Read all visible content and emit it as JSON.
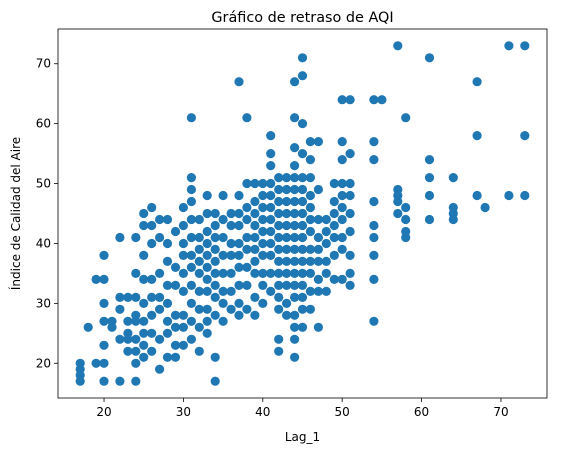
{
  "chart_data": {
    "type": "scatter",
    "title": "Gráfico de retraso de AQI",
    "xlabel": "Lag_1",
    "ylabel": "Índice de Calidad del Aire",
    "xlim": [
      14.2,
      75.8
    ],
    "ylim": [
      14.2,
      75.8
    ],
    "xticks": [
      20,
      30,
      40,
      50,
      60,
      70
    ],
    "yticks": [
      20,
      30,
      40,
      50,
      60,
      70
    ],
    "grid": false,
    "marker_color": "#1f77b4",
    "points": [
      [
        17,
        20
      ],
      [
        17,
        19
      ],
      [
        17,
        18
      ],
      [
        17,
        17
      ],
      [
        18,
        26
      ],
      [
        19,
        34
      ],
      [
        19,
        20
      ],
      [
        20,
        38
      ],
      [
        20,
        34
      ],
      [
        20,
        30
      ],
      [
        20,
        27
      ],
      [
        20,
        23
      ],
      [
        20,
        20
      ],
      [
        20,
        17
      ],
      [
        21,
        27
      ],
      [
        21,
        26
      ],
      [
        22,
        41
      ],
      [
        22,
        31
      ],
      [
        22,
        29
      ],
      [
        22,
        24
      ],
      [
        22,
        17
      ],
      [
        23,
        31
      ],
      [
        23,
        27
      ],
      [
        23,
        25
      ],
      [
        23,
        24
      ],
      [
        23,
        22
      ],
      [
        24,
        41
      ],
      [
        24,
        35
      ],
      [
        24,
        31
      ],
      [
        24,
        28
      ],
      [
        24,
        27
      ],
      [
        24,
        24
      ],
      [
        24,
        22
      ],
      [
        24,
        20
      ],
      [
        24,
        17
      ],
      [
        25,
        45
      ],
      [
        25,
        43
      ],
      [
        25,
        38
      ],
      [
        25,
        34
      ],
      [
        25,
        30
      ],
      [
        25,
        27
      ],
      [
        25,
        25
      ],
      [
        25,
        23
      ],
      [
        25,
        21
      ],
      [
        26,
        46
      ],
      [
        26,
        43
      ],
      [
        26,
        40
      ],
      [
        26,
        34
      ],
      [
        26,
        31
      ],
      [
        26,
        28
      ],
      [
        26,
        25
      ],
      [
        26,
        22
      ],
      [
        27,
        44
      ],
      [
        27,
        41
      ],
      [
        27,
        35
      ],
      [
        27,
        31
      ],
      [
        27,
        29
      ],
      [
        27,
        24
      ],
      [
        27,
        19
      ],
      [
        28,
        44
      ],
      [
        28,
        40
      ],
      [
        28,
        37
      ],
      [
        28,
        33
      ],
      [
        28,
        30
      ],
      [
        28,
        27
      ],
      [
        28,
        25
      ],
      [
        28,
        21
      ],
      [
        29,
        42
      ],
      [
        29,
        36
      ],
      [
        29,
        33
      ],
      [
        29,
        28
      ],
      [
        29,
        26
      ],
      [
        29,
        23
      ],
      [
        29,
        21
      ],
      [
        30,
        46
      ],
      [
        30,
        43
      ],
      [
        30,
        40
      ],
      [
        30,
        38
      ],
      [
        30,
        35
      ],
      [
        30,
        32
      ],
      [
        30,
        28
      ],
      [
        30,
        26
      ],
      [
        30,
        23
      ],
      [
        31,
        61
      ],
      [
        31,
        51
      ],
      [
        31,
        49
      ],
      [
        31,
        47
      ],
      [
        31,
        44
      ],
      [
        31,
        41
      ],
      [
        31,
        38
      ],
      [
        31,
        36
      ],
      [
        31,
        33
      ],
      [
        31,
        30
      ],
      [
        31,
        27
      ],
      [
        31,
        24
      ],
      [
        32,
        44
      ],
      [
        32,
        41
      ],
      [
        32,
        39
      ],
      [
        32,
        37
      ],
      [
        32,
        35
      ],
      [
        32,
        32
      ],
      [
        32,
        29
      ],
      [
        32,
        26
      ],
      [
        32,
        22
      ],
      [
        33,
        48
      ],
      [
        33,
        45
      ],
      [
        33,
        42
      ],
      [
        33,
        40
      ],
      [
        33,
        38
      ],
      [
        33,
        36
      ],
      [
        33,
        34
      ],
      [
        33,
        32
      ],
      [
        33,
        29
      ],
      [
        33,
        27
      ],
      [
        33,
        25
      ],
      [
        34,
        45
      ],
      [
        34,
        43
      ],
      [
        34,
        41
      ],
      [
        34,
        39
      ],
      [
        34,
        37
      ],
      [
        34,
        35
      ],
      [
        34,
        33
      ],
      [
        34,
        31
      ],
      [
        34,
        28
      ],
      [
        34,
        21
      ],
      [
        34,
        17
      ],
      [
        35,
        48
      ],
      [
        35,
        44
      ],
      [
        35,
        41
      ],
      [
        35,
        38
      ],
      [
        35,
        35
      ],
      [
        35,
        32
      ],
      [
        35,
        30
      ],
      [
        35,
        27
      ],
      [
        36,
        45
      ],
      [
        36,
        43
      ],
      [
        36,
        40
      ],
      [
        36,
        38
      ],
      [
        36,
        35
      ],
      [
        36,
        32
      ],
      [
        36,
        29
      ],
      [
        37,
        67
      ],
      [
        37,
        48
      ],
      [
        37,
        45
      ],
      [
        37,
        43
      ],
      [
        37,
        40
      ],
      [
        37,
        38
      ],
      [
        37,
        36
      ],
      [
        37,
        33
      ],
      [
        37,
        30
      ],
      [
        37,
        28
      ],
      [
        38,
        61
      ],
      [
        38,
        50
      ],
      [
        38,
        46
      ],
      [
        38,
        44
      ],
      [
        38,
        41
      ],
      [
        38,
        39
      ],
      [
        38,
        36
      ],
      [
        38,
        33
      ],
      [
        38,
        29
      ],
      [
        39,
        50
      ],
      [
        39,
        47
      ],
      [
        39,
        45
      ],
      [
        39,
        43
      ],
      [
        39,
        41
      ],
      [
        39,
        39
      ],
      [
        39,
        37
      ],
      [
        39,
        35
      ],
      [
        39,
        31
      ],
      [
        39,
        28
      ],
      [
        40,
        50
      ],
      [
        40,
        48
      ],
      [
        40,
        46
      ],
      [
        40,
        44
      ],
      [
        40,
        42
      ],
      [
        40,
        40
      ],
      [
        40,
        38
      ],
      [
        40,
        35
      ],
      [
        40,
        33
      ],
      [
        40,
        30
      ],
      [
        41,
        58
      ],
      [
        41,
        55
      ],
      [
        41,
        53
      ],
      [
        41,
        50
      ],
      [
        41,
        48
      ],
      [
        41,
        46
      ],
      [
        41,
        44
      ],
      [
        41,
        42
      ],
      [
        41,
        40
      ],
      [
        41,
        38
      ],
      [
        41,
        35
      ],
      [
        41,
        32
      ],
      [
        42,
        51
      ],
      [
        42,
        49
      ],
      [
        42,
        47
      ],
      [
        42,
        45
      ],
      [
        42,
        43
      ],
      [
        42,
        41
      ],
      [
        42,
        39
      ],
      [
        42,
        37
      ],
      [
        42,
        35
      ],
      [
        42,
        33
      ],
      [
        42,
        31
      ],
      [
        42,
        29
      ],
      [
        42,
        24
      ],
      [
        42,
        22
      ],
      [
        43,
        51
      ],
      [
        43,
        49
      ],
      [
        43,
        47
      ],
      [
        43,
        45
      ],
      [
        43,
        43
      ],
      [
        43,
        41
      ],
      [
        43,
        39
      ],
      [
        43,
        37
      ],
      [
        43,
        35
      ],
      [
        43,
        33
      ],
      [
        43,
        30
      ],
      [
        43,
        28
      ],
      [
        44,
        67
      ],
      [
        44,
        61
      ],
      [
        44,
        56
      ],
      [
        44,
        53
      ],
      [
        44,
        51
      ],
      [
        44,
        49
      ],
      [
        44,
        47
      ],
      [
        44,
        45
      ],
      [
        44,
        43
      ],
      [
        44,
        41
      ],
      [
        44,
        39
      ],
      [
        44,
        37
      ],
      [
        44,
        35
      ],
      [
        44,
        33
      ],
      [
        44,
        31
      ],
      [
        44,
        28
      ],
      [
        44,
        26
      ],
      [
        44,
        24
      ],
      [
        44,
        21
      ],
      [
        45,
        71
      ],
      [
        45,
        68
      ],
      [
        45,
        60
      ],
      [
        45,
        55
      ],
      [
        45,
        51
      ],
      [
        45,
        49
      ],
      [
        45,
        47
      ],
      [
        45,
        45
      ],
      [
        45,
        43
      ],
      [
        45,
        41
      ],
      [
        45,
        39
      ],
      [
        45,
        37
      ],
      [
        45,
        35
      ],
      [
        45,
        33
      ],
      [
        45,
        31
      ],
      [
        45,
        29
      ],
      [
        45,
        26
      ],
      [
        46,
        57
      ],
      [
        46,
        54
      ],
      [
        46,
        51
      ],
      [
        46,
        48
      ],
      [
        46,
        46
      ],
      [
        46,
        44
      ],
      [
        46,
        42
      ],
      [
        46,
        39
      ],
      [
        46,
        37
      ],
      [
        46,
        35
      ],
      [
        46,
        32
      ],
      [
        46,
        29
      ],
      [
        47,
        57
      ],
      [
        47,
        49
      ],
      [
        47,
        44
      ],
      [
        47,
        41
      ],
      [
        47,
        39
      ],
      [
        47,
        37
      ],
      [
        47,
        34
      ],
      [
        47,
        32
      ],
      [
        47,
        26
      ],
      [
        48,
        44
      ],
      [
        48,
        42
      ],
      [
        48,
        40
      ],
      [
        48,
        37
      ],
      [
        48,
        35
      ],
      [
        48,
        32
      ],
      [
        49,
        50
      ],
      [
        49,
        47
      ],
      [
        49,
        45
      ],
      [
        49,
        43
      ],
      [
        49,
        41
      ],
      [
        49,
        38
      ],
      [
        49,
        34
      ],
      [
        50,
        64
      ],
      [
        50,
        57
      ],
      [
        50,
        54
      ],
      [
        50,
        50
      ],
      [
        50,
        48
      ],
      [
        50,
        46
      ],
      [
        50,
        44
      ],
      [
        50,
        41
      ],
      [
        50,
        39
      ],
      [
        50,
        34
      ],
      [
        51,
        64
      ],
      [
        51,
        55
      ],
      [
        51,
        50
      ],
      [
        51,
        48
      ],
      [
        51,
        45
      ],
      [
        51,
        42
      ],
      [
        51,
        38
      ],
      [
        51,
        35
      ],
      [
        51,
        33
      ],
      [
        54,
        64
      ],
      [
        54,
        57
      ],
      [
        54,
        54
      ],
      [
        54,
        47
      ],
      [
        54,
        43
      ],
      [
        54,
        41
      ],
      [
        54,
        38
      ],
      [
        54,
        34
      ],
      [
        54,
        27
      ],
      [
        55,
        64
      ],
      [
        57,
        73
      ],
      [
        57,
        49
      ],
      [
        57,
        48
      ],
      [
        57,
        47
      ],
      [
        57,
        45
      ],
      [
        58,
        61
      ],
      [
        58,
        46
      ],
      [
        58,
        44
      ],
      [
        58,
        42
      ],
      [
        58,
        41
      ],
      [
        61,
        71
      ],
      [
        61,
        54
      ],
      [
        61,
        51
      ],
      [
        61,
        48
      ],
      [
        61,
        44
      ],
      [
        64,
        51
      ],
      [
        64,
        46
      ],
      [
        64,
        45
      ],
      [
        64,
        44
      ],
      [
        67,
        67
      ],
      [
        67,
        58
      ],
      [
        67,
        48
      ],
      [
        68,
        46
      ],
      [
        71,
        73
      ],
      [
        71,
        48
      ],
      [
        73,
        73
      ],
      [
        73,
        58
      ],
      [
        73,
        48
      ]
    ]
  }
}
